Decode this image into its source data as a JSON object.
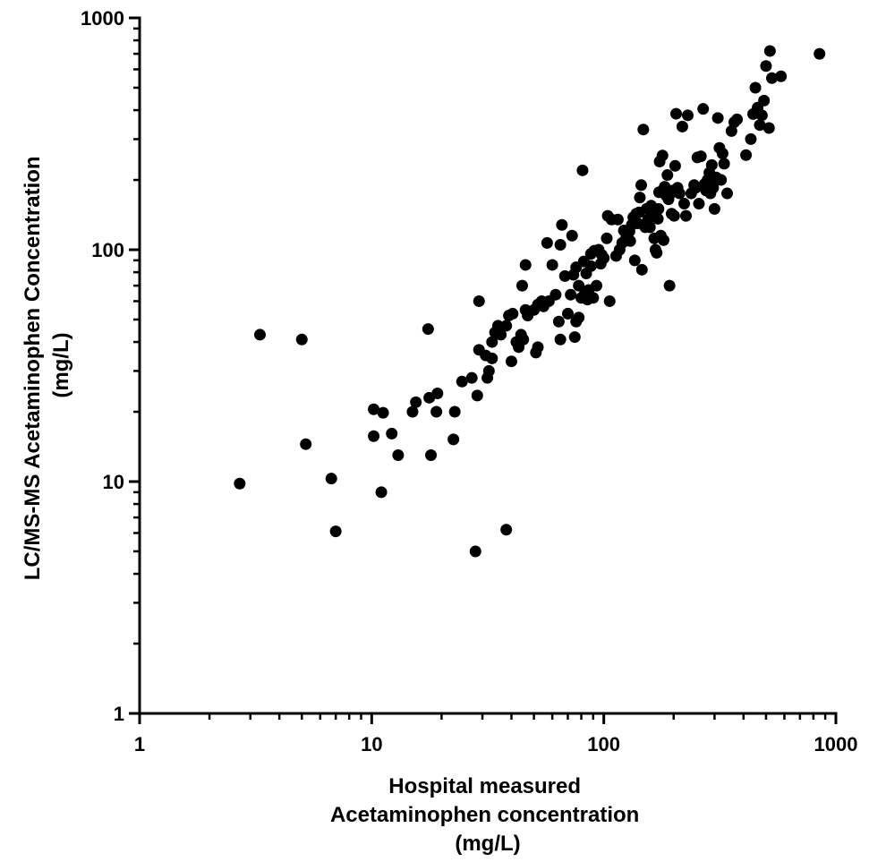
{
  "chart_data": {
    "type": "scatter",
    "title": "",
    "xlabel_lines": [
      "Hospital measured",
      "Acetaminophen concentration",
      "(mg/L)"
    ],
    "ylabel_lines": [
      "LC/MS-MS Acetaminophen Concentration",
      "(mg/L)"
    ],
    "x_scale": "log",
    "y_scale": "log",
    "xlim": [
      1,
      1000
    ],
    "ylim": [
      1,
      1000
    ],
    "x_ticks": [
      1,
      10,
      100,
      1000
    ],
    "y_ticks": [
      1,
      10,
      100,
      1000
    ],
    "x_tick_labels": [
      "1",
      "10",
      "100",
      "1000"
    ],
    "y_tick_labels": [
      "1",
      "10",
      "100",
      "1000"
    ],
    "grid": false,
    "legend": "none",
    "marker_color": "#000000",
    "series": [
      {
        "points": [
          [
            2.7,
            9.8
          ],
          [
            3.3,
            43
          ],
          [
            5.0,
            41
          ],
          [
            5.2,
            14.5
          ],
          [
            6.7,
            10.3
          ],
          [
            7.0,
            6.1
          ],
          [
            10.2,
            20.5
          ],
          [
            10.2,
            15.7
          ],
          [
            11.0,
            9.0
          ],
          [
            11.2,
            19.8
          ],
          [
            12.2,
            16.1
          ],
          [
            13.0,
            13.0
          ],
          [
            15.0,
            20.0
          ],
          [
            15.5,
            22.0
          ],
          [
            17.5,
            45.5
          ],
          [
            17.7,
            23.0
          ],
          [
            18.0,
            13.0
          ],
          [
            19.0,
            20.0
          ],
          [
            19.2,
            24.0
          ],
          [
            22.5,
            15.2
          ],
          [
            22.8,
            20.0
          ],
          [
            24.5,
            27.0
          ],
          [
            27.0,
            28.0
          ],
          [
            28.0,
            5.0
          ],
          [
            28.5,
            23.5
          ],
          [
            29.0,
            37.0
          ],
          [
            29.0,
            60.0
          ],
          [
            31.0,
            35.0
          ],
          [
            31.5,
            28.0
          ],
          [
            32.0,
            30.0
          ],
          [
            33.0,
            34.0
          ],
          [
            33.0,
            40.0
          ],
          [
            34.0,
            44.0
          ],
          [
            35.0,
            47.0
          ],
          [
            36.0,
            43.0
          ],
          [
            38.0,
            47.0
          ],
          [
            38.0,
            6.2
          ],
          [
            39.0,
            52.0
          ],
          [
            40.0,
            33.0
          ],
          [
            40.5,
            53.0
          ],
          [
            42.0,
            40.0
          ],
          [
            43.0,
            38.0
          ],
          [
            44.0,
            43.0
          ],
          [
            44.5,
            70.0
          ],
          [
            45.0,
            41.0
          ],
          [
            46.0,
            55.0
          ],
          [
            46.0,
            86.0
          ],
          [
            47.0,
            52.0
          ],
          [
            50.0,
            55.0
          ],
          [
            51.0,
            36.0
          ],
          [
            52.0,
            38.0
          ],
          [
            52.0,
            58.0
          ],
          [
            54.0,
            60.0
          ],
          [
            55.0,
            57.0
          ],
          [
            57.0,
            107.0
          ],
          [
            58.0,
            60.0
          ],
          [
            60.0,
            86.0
          ],
          [
            62.0,
            64.0
          ],
          [
            64.0,
            49.0
          ],
          [
            65.0,
            41.0
          ],
          [
            65.0,
            105.0
          ],
          [
            66.0,
            128.0
          ],
          [
            68.0,
            77.0
          ],
          [
            70.0,
            53.0
          ],
          [
            72.0,
            64.0
          ],
          [
            73.0,
            115.0
          ],
          [
            74.0,
            78.0
          ],
          [
            75.0,
            42.0
          ],
          [
            76.0,
            49.0
          ],
          [
            76.0,
            84.0
          ],
          [
            78.0,
            70.0
          ],
          [
            78.0,
            51.0
          ],
          [
            80.0,
            62.0
          ],
          [
            81.0,
            220.0
          ],
          [
            82.0,
            89.0
          ],
          [
            83.0,
            65.0
          ],
          [
            84.0,
            79.0
          ],
          [
            85.0,
            61.0
          ],
          [
            86.0,
            67.0
          ],
          [
            88.0,
            96.0
          ],
          [
            88.0,
            85.0
          ],
          [
            90.0,
            62.0
          ],
          [
            91.0,
            99.0
          ],
          [
            93.0,
            70.0
          ],
          [
            95.0,
            100.0
          ],
          [
            97.0,
            87.0
          ],
          [
            98.0,
            95.0
          ],
          [
            100.0,
            92.0
          ],
          [
            103.0,
            112.0
          ],
          [
            104.0,
            140.0
          ],
          [
            106.0,
            60.0
          ],
          [
            108.0,
            135.0
          ],
          [
            113.0,
            94.0
          ],
          [
            115.0,
            135.0
          ],
          [
            117.0,
            100.0
          ],
          [
            120.0,
            107.0
          ],
          [
            122.0,
            121.0
          ],
          [
            125.0,
            113.0
          ],
          [
            127.0,
            118.0
          ],
          [
            129.0,
            120.0
          ],
          [
            130.0,
            109.0
          ],
          [
            132.0,
            128.0
          ],
          [
            134.0,
            138.0
          ],
          [
            136.0,
            90.0
          ],
          [
            138.0,
            143.0
          ],
          [
            140.0,
            130.0
          ],
          [
            142.0,
            145.0
          ],
          [
            143.0,
            168.0
          ],
          [
            145.0,
            190.0
          ],
          [
            146.0,
            82.0
          ],
          [
            148.0,
            330.0
          ],
          [
            151.0,
            125.0
          ],
          [
            153.0,
            150.0
          ],
          [
            155.0,
            135.0
          ],
          [
            158.0,
            125.0
          ],
          [
            160.0,
            155.0
          ],
          [
            163.0,
            145.0
          ],
          [
            165.0,
            112.0
          ],
          [
            167.0,
            100.0
          ],
          [
            169.0,
            97.0
          ],
          [
            171.0,
            136.0
          ],
          [
            172.0,
            150.0
          ],
          [
            173.0,
            177.0
          ],
          [
            174.0,
            240.0
          ],
          [
            176.0,
            115.0
          ],
          [
            179.0,
            255.0
          ],
          [
            181.0,
            110.0
          ],
          [
            183.0,
            187.0
          ],
          [
            185.0,
            172.0
          ],
          [
            188.0,
            210.0
          ],
          [
            190.0,
            165.0
          ],
          [
            192.0,
            70.0
          ],
          [
            194.0,
            175.0
          ],
          [
            196.0,
            143.0
          ],
          [
            198.0,
            180.0
          ],
          [
            201.0,
            140.0
          ],
          [
            203.0,
            230.0
          ],
          [
            205.0,
            386.0
          ],
          [
            208.0,
            185.0
          ],
          [
            212.0,
            175.0
          ],
          [
            218.0,
            340.0
          ],
          [
            222.0,
            158.0
          ],
          [
            226.0,
            140.0
          ],
          [
            230.0,
            380.0
          ],
          [
            238.0,
            175.0
          ],
          [
            245.0,
            190.0
          ],
          [
            249.0,
            185.0
          ],
          [
            253.0,
            250.0
          ],
          [
            257.0,
            158.0
          ],
          [
            262.0,
            253.0
          ],
          [
            268.0,
            405.0
          ],
          [
            272.0,
            192.0
          ],
          [
            276.0,
            180.0
          ],
          [
            280.0,
            200.0
          ],
          [
            285.0,
            215.0
          ],
          [
            288.0,
            175.0
          ],
          [
            292.0,
            232.0
          ],
          [
            296.0,
            185.0
          ],
          [
            300.0,
            150.0
          ],
          [
            305.0,
            205.0
          ],
          [
            310.0,
            370.0
          ],
          [
            315.0,
            275.0
          ],
          [
            320.0,
            200.0
          ],
          [
            325.0,
            260.0
          ],
          [
            330.0,
            235.0
          ],
          [
            340.0,
            175.0
          ],
          [
            355.0,
            325.0
          ],
          [
            365.0,
            355.0
          ],
          [
            375.0,
            365.0
          ],
          [
            410.0,
            256.0
          ],
          [
            430.0,
            300.0
          ],
          [
            440.0,
            385.0
          ],
          [
            450.0,
            500.0
          ],
          [
            460.0,
            410.0
          ],
          [
            470.0,
            345.0
          ],
          [
            480.0,
            380.0
          ],
          [
            490.0,
            440.0
          ],
          [
            500.0,
            620.0
          ],
          [
            515.0,
            335.0
          ],
          [
            520.0,
            720.0
          ],
          [
            530.0,
            550.0
          ],
          [
            580.0,
            560.0
          ],
          [
            850.0,
            700.0
          ]
        ]
      }
    ]
  }
}
